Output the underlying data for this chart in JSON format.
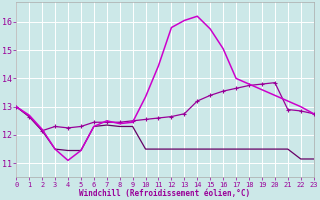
{
  "xlabel": "Windchill (Refroidissement éolien,°C)",
  "bg_color": "#cce8e8",
  "grid_color": "#b0d8d8",
  "line_color": "#990099",
  "xlim": [
    0,
    23
  ],
  "ylim": [
    10.5,
    16.7
  ],
  "yticks": [
    11,
    12,
    13,
    14,
    15,
    16
  ],
  "xticks": [
    0,
    1,
    2,
    3,
    4,
    5,
    6,
    7,
    8,
    9,
    10,
    11,
    12,
    13,
    14,
    15,
    16,
    17,
    18,
    19,
    20,
    21,
    22,
    23
  ],
  "s1_x": [
    0,
    1,
    2,
    3,
    4,
    5,
    6,
    7,
    8,
    9,
    10,
    11,
    12,
    13,
    14,
    15,
    16,
    17,
    22,
    23
  ],
  "s1_y": [
    13.0,
    12.7,
    12.2,
    11.5,
    11.1,
    11.45,
    12.3,
    12.5,
    12.4,
    12.45,
    13.35,
    14.45,
    15.8,
    16.05,
    16.2,
    15.75,
    15.05,
    14.0,
    13.0,
    12.75
  ],
  "s2_x": [
    0,
    1,
    2,
    3,
    4,
    5,
    6,
    7,
    8,
    9,
    10,
    11,
    12,
    13,
    14,
    15,
    16,
    17,
    18,
    19,
    20,
    21,
    22,
    23
  ],
  "s2_y": [
    13.0,
    12.65,
    12.15,
    12.3,
    12.25,
    12.3,
    12.45,
    12.45,
    12.45,
    12.5,
    12.55,
    12.6,
    12.65,
    12.75,
    13.2,
    13.4,
    13.55,
    13.65,
    13.75,
    13.8,
    13.85,
    12.9,
    12.85,
    12.75
  ],
  "s3_x": [
    0,
    1,
    2,
    3,
    4,
    5,
    6,
    7,
    8,
    9,
    10,
    11,
    12,
    13,
    14,
    15,
    16,
    17,
    18,
    19,
    20,
    21,
    22,
    23
  ],
  "s3_y": [
    13.0,
    12.65,
    12.15,
    11.5,
    11.45,
    11.45,
    12.3,
    12.35,
    12.3,
    12.3,
    11.5,
    11.5,
    11.5,
    11.5,
    11.5,
    11.5,
    11.5,
    11.5,
    11.5,
    11.5,
    11.5,
    11.5,
    11.15,
    11.15
  ]
}
